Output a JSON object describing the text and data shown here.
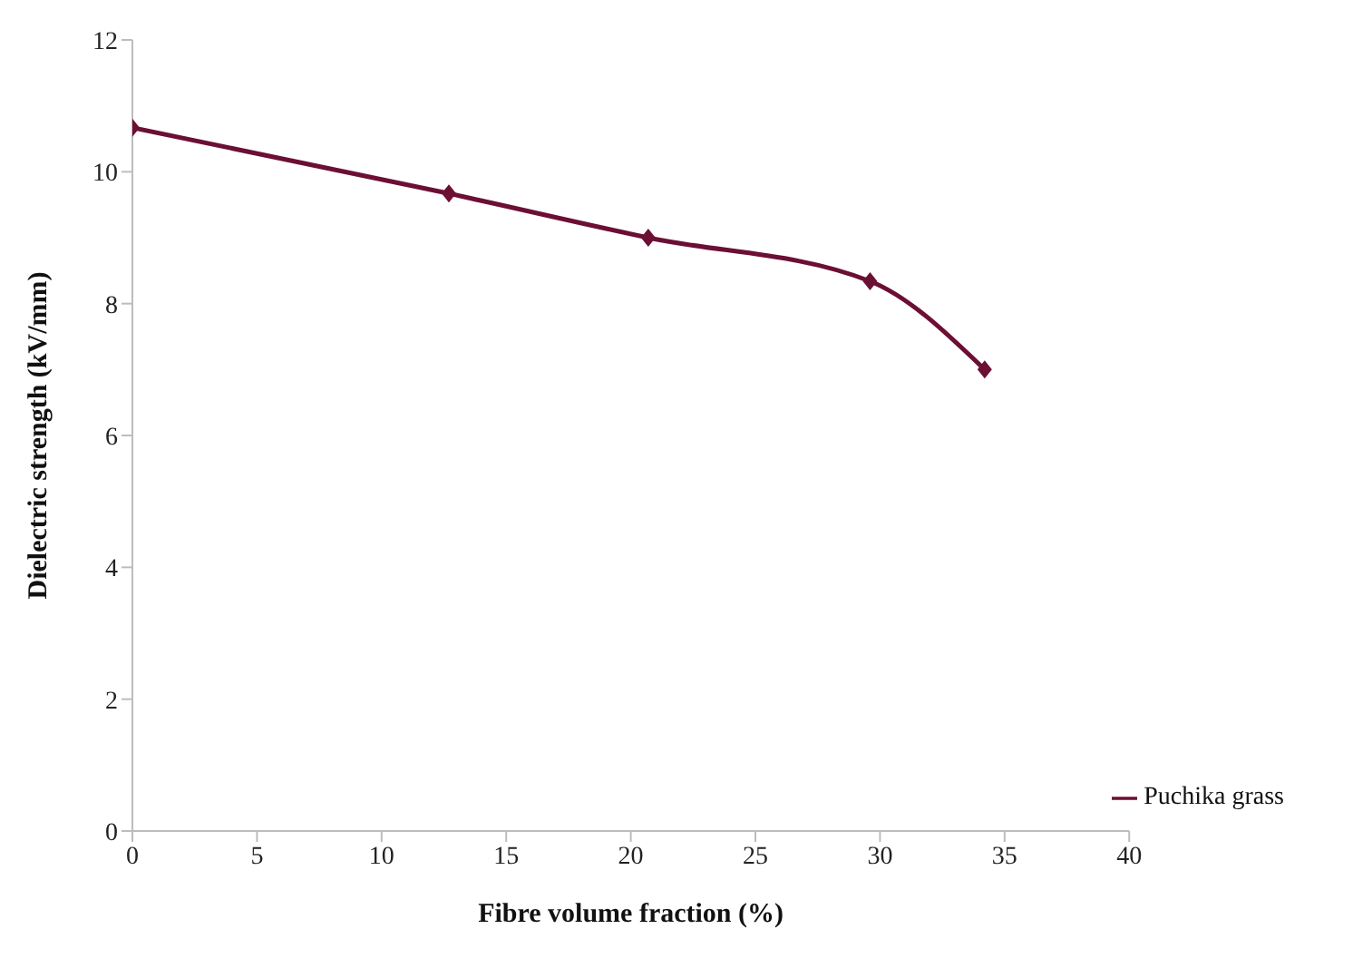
{
  "chart_data": {
    "type": "line",
    "xlabel": "Fibre volume fraction (%)",
    "ylabel": "Dielectric strength (kV/mm)",
    "x": [
      0,
      12.7,
      20.7,
      29.6,
      34.2
    ],
    "series": [
      {
        "name": "Puchika grass",
        "color": "#6b0f35",
        "values": [
          10.67,
          9.67,
          9.0,
          8.34,
          7.0
        ]
      }
    ],
    "xlim": [
      0,
      40
    ],
    "xticks": [
      0,
      5,
      10,
      15,
      20,
      25,
      30,
      35,
      40
    ],
    "ylim": [
      0,
      12
    ],
    "yticks": [
      0,
      2,
      4,
      6,
      8,
      10,
      12
    ],
    "grid": false,
    "legend": "bottom right",
    "marker": "diamond",
    "line_style": "solid"
  }
}
